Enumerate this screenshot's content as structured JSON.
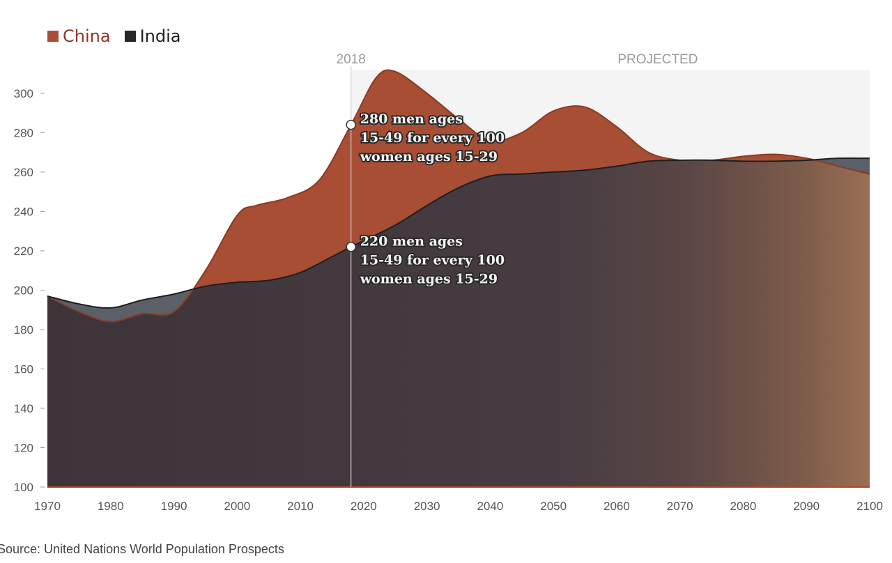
{
  "legend": [
    {
      "label": "China",
      "color": "#a84e35",
      "text_color": "#8a3a24"
    },
    {
      "label": "India",
      "color": "#24282b",
      "text_color": "#1e1e1e"
    }
  ],
  "marker_year_label": "2018",
  "projected_label": "PROJECTED",
  "annotations": [
    {
      "lines": [
        "280 men ages",
        "15-49 for every 100",
        "women ages 15-29"
      ],
      "x": 2018,
      "y": 284
    },
    {
      "lines": [
        "220 men ages",
        "15-49 for every 100",
        "women ages 15-29"
      ],
      "x": 2018,
      "y": 222
    }
  ],
  "source": "Source: United Nations World Population Prospects",
  "chart_data": {
    "type": "area",
    "title": "",
    "xlabel": "",
    "ylabel": "",
    "xlim": [
      1970,
      2100
    ],
    "ylim": [
      100,
      312
    ],
    "x_ticks": [
      1970,
      1980,
      1990,
      2000,
      2010,
      2020,
      2030,
      2040,
      2050,
      2060,
      2070,
      2080,
      2090,
      2100
    ],
    "y_ticks": [
      100,
      120,
      140,
      160,
      180,
      200,
      220,
      240,
      260,
      280,
      300
    ],
    "grid": false,
    "legend_position": "top-left",
    "marker_x": 2018,
    "projected_from": 2018,
    "series": [
      {
        "name": "China",
        "color": "#a84e35",
        "x": [
          1970,
          1975,
          1980,
          1985,
          1990,
          1995,
          2000,
          2003,
          2008,
          2013,
          2018,
          2022,
          2025,
          2030,
          2035,
          2040,
          2045,
          2050,
          2055,
          2060,
          2065,
          2070,
          2075,
          2080,
          2085,
          2090,
          2095,
          2100
        ],
        "values": [
          197,
          189,
          184,
          188,
          189,
          210,
          238,
          243,
          247,
          256,
          284,
          308,
          311,
          300,
          287,
          276,
          280,
          291,
          293,
          283,
          270,
          266,
          266,
          268,
          269,
          267,
          263,
          259
        ]
      },
      {
        "name": "India",
        "color": "#24282b",
        "x": [
          1970,
          1975,
          1980,
          1985,
          1990,
          1995,
          2000,
          2005,
          2010,
          2015,
          2018,
          2025,
          2030,
          2035,
          2040,
          2045,
          2050,
          2055,
          2060,
          2065,
          2070,
          2075,
          2080,
          2085,
          2090,
          2095,
          2100
        ],
        "values": [
          197,
          193,
          191,
          195,
          198,
          202,
          204,
          205,
          209,
          217,
          222,
          233,
          243,
          252,
          258,
          259,
          260,
          261,
          263,
          265.5,
          266,
          266,
          265.5,
          265.5,
          266,
          267,
          267
        ]
      }
    ]
  }
}
